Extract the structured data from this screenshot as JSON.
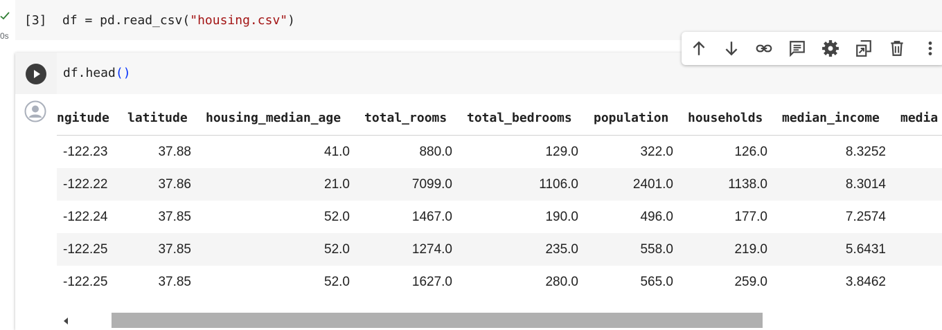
{
  "cell1": {
    "status_time": "0s",
    "execution_count": "[3]",
    "code_prefix": "df = pd.read_csv(",
    "code_string": "\"housing.csv\"",
    "code_suffix": ")"
  },
  "cell2": {
    "code_name": "df.head",
    "code_parens": "()"
  },
  "toolbar": {
    "buttons": [
      "move-up-icon",
      "move-down-icon",
      "link-icon",
      "comment-icon",
      "settings-icon",
      "mirror-cell-icon",
      "delete-icon",
      "more-icon"
    ]
  },
  "table": {
    "columns": [
      "ngitude",
      "latitude",
      "housing_median_age",
      "total_rooms",
      "total_bedrooms",
      "population",
      "households",
      "median_income",
      "media"
    ],
    "rows": [
      [
        "-122.23",
        "37.88",
        "41.0",
        "880.0",
        "129.0",
        "322.0",
        "126.0",
        "8.3252"
      ],
      [
        "-122.22",
        "37.86",
        "21.0",
        "7099.0",
        "1106.0",
        "2401.0",
        "1138.0",
        "8.3014"
      ],
      [
        "-122.24",
        "37.85",
        "52.0",
        "1467.0",
        "190.0",
        "496.0",
        "177.0",
        "7.2574"
      ],
      [
        "-122.25",
        "37.85",
        "52.0",
        "1274.0",
        "235.0",
        "558.0",
        "219.0",
        "5.6431"
      ],
      [
        "-122.25",
        "37.85",
        "52.0",
        "1627.0",
        "280.0",
        "565.0",
        "259.0",
        "3.8462"
      ]
    ]
  },
  "colors": {
    "success_check": "#2e7d32",
    "string_literal": "#a31515",
    "bracket": "#0431fa"
  }
}
